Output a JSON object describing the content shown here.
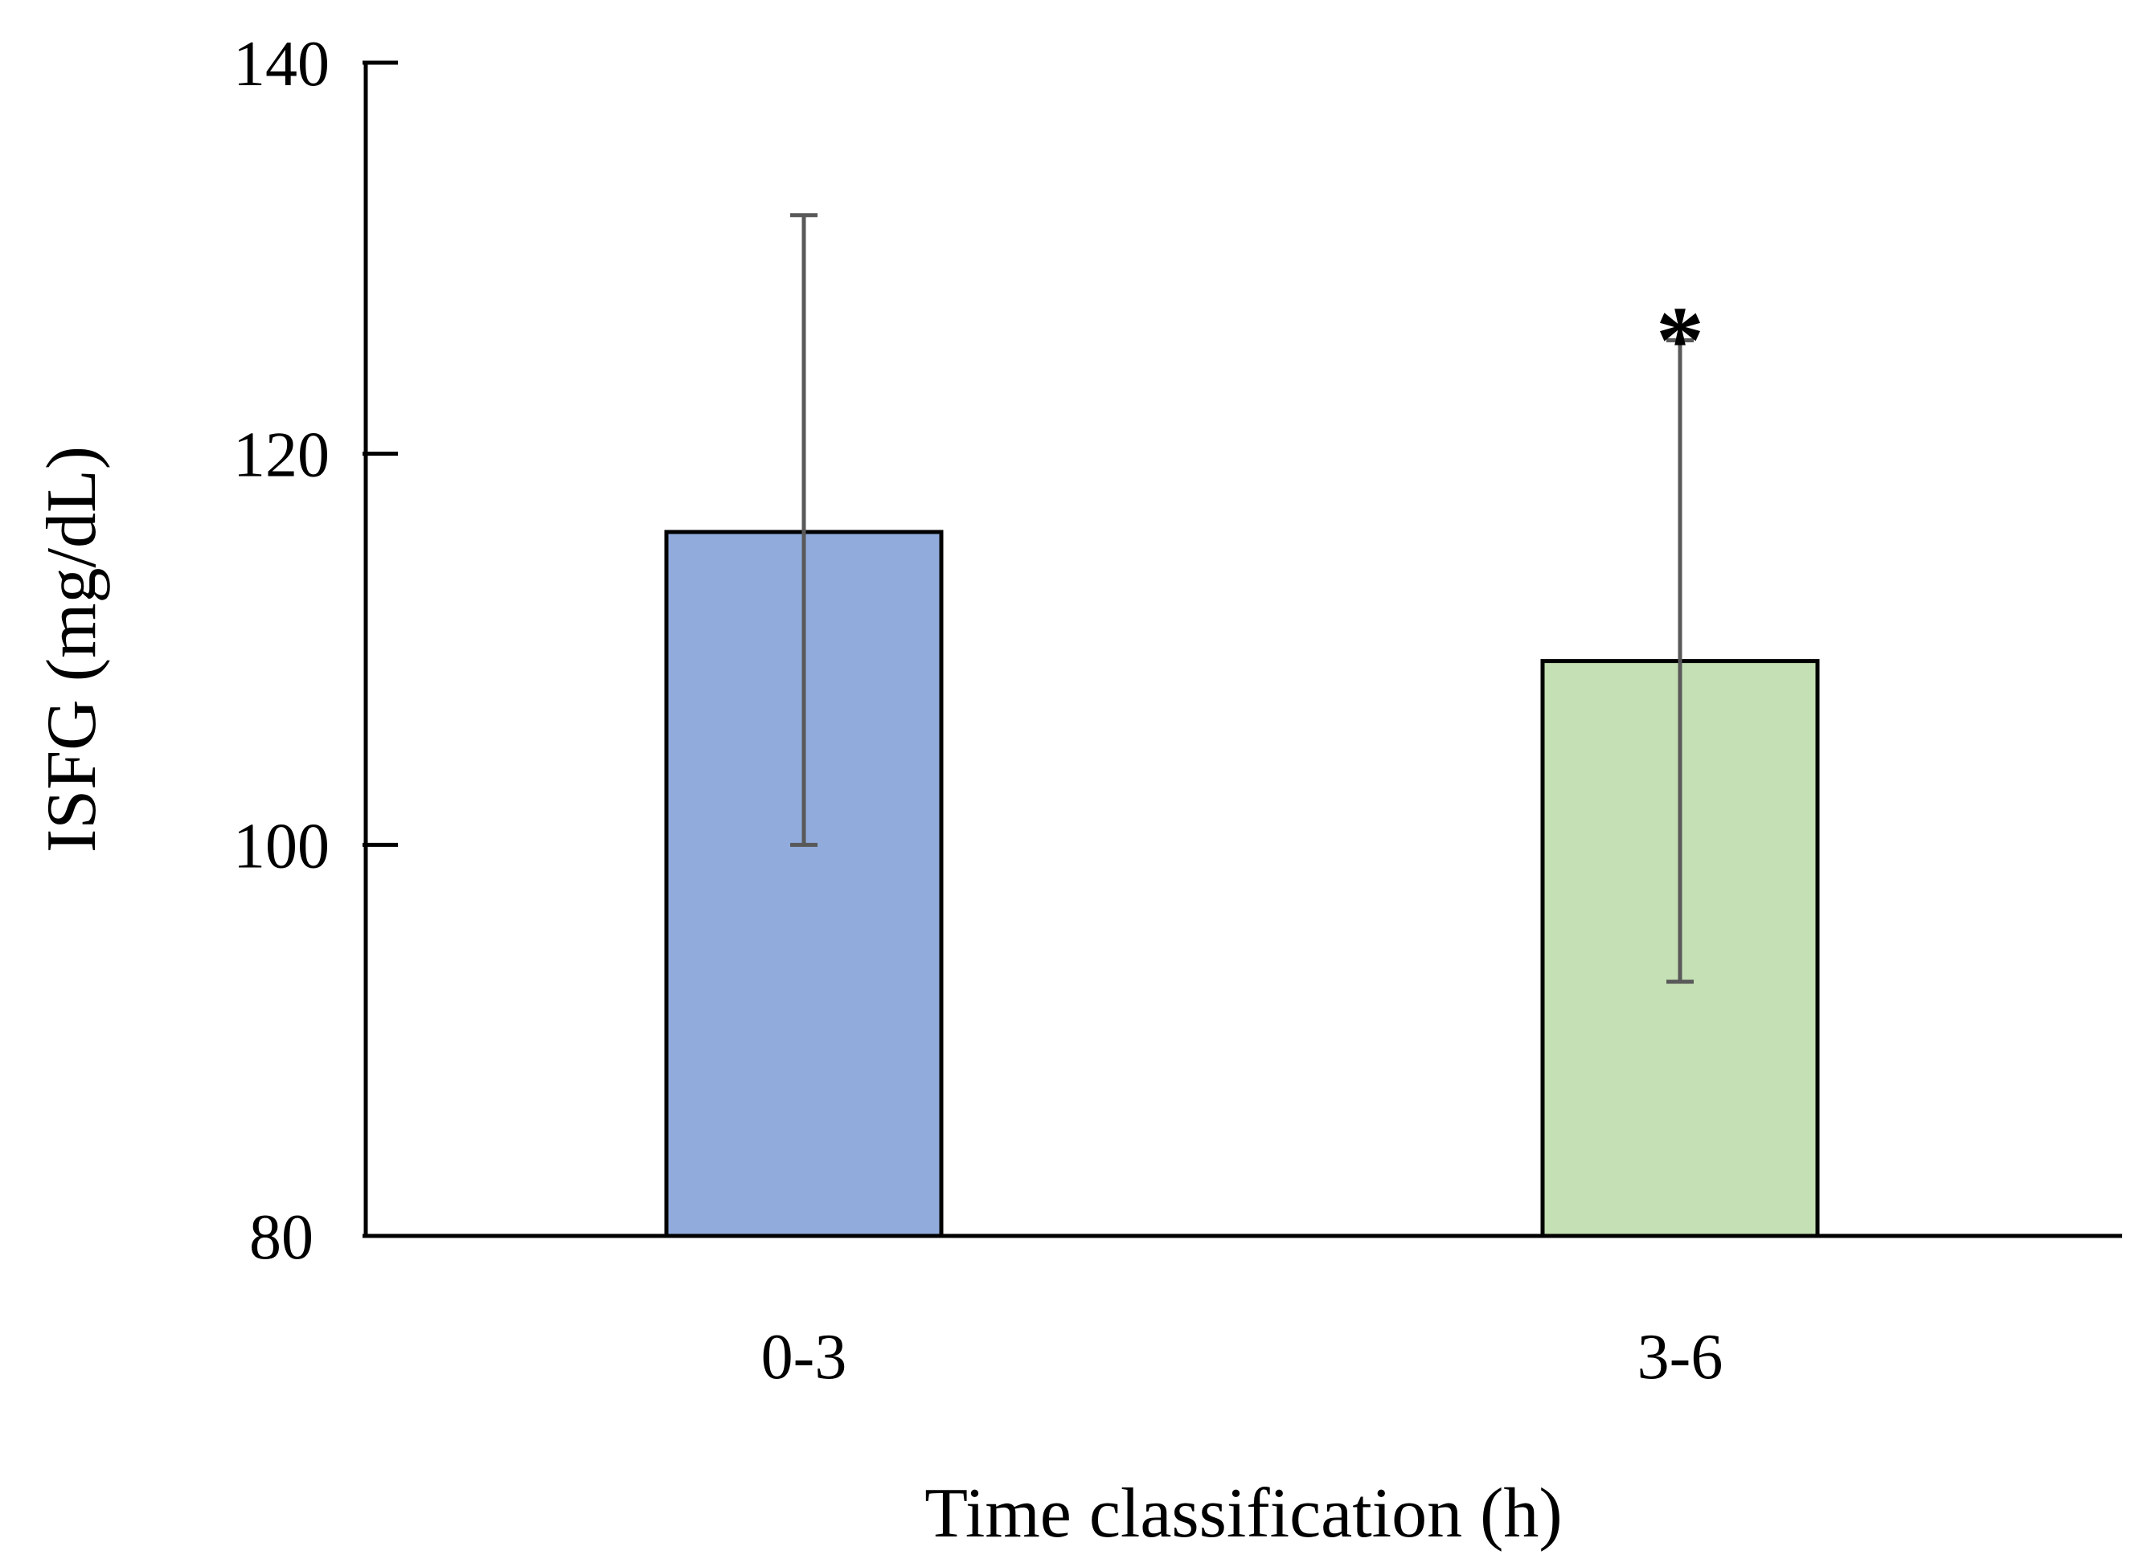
{
  "chart_data": {
    "type": "bar",
    "categories": [
      "0-3",
      "3-6"
    ],
    "values": [
      116,
      109.4
    ],
    "error_bars": [
      {
        "low": 100,
        "high": 132.2
      },
      {
        "low": 93,
        "high": 125.8
      }
    ],
    "significance": [
      "",
      "*"
    ],
    "bar_colors": [
      "#91acdc",
      "#c5e0b4"
    ],
    "xlabel": "Time classification (h)",
    "ylabel": "ISFG (mg/dL)",
    "ylim": [
      80,
      140
    ],
    "yticks": [
      80,
      100,
      120,
      140
    ],
    "grid": false,
    "legend": "none"
  }
}
